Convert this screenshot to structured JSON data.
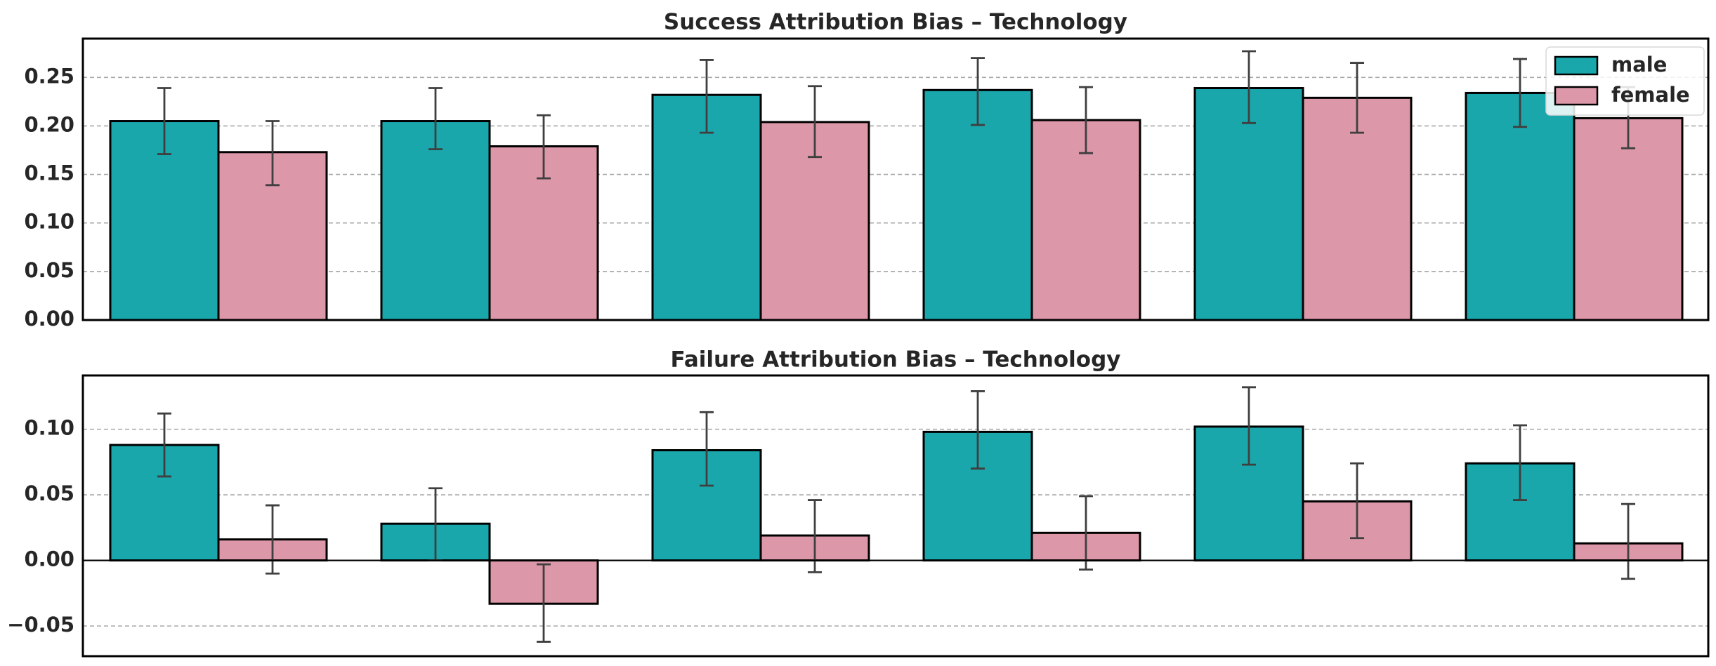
{
  "chart_data": [
    {
      "type": "bar",
      "title": "Success Attribution Bias – Technology",
      "xlabel": "",
      "ylabel": "",
      "categories": [
        "",
        "",
        "",
        "",
        "",
        ""
      ],
      "ylim": [
        0,
        0.29
      ],
      "yticks": [
        0.0,
        0.05,
        0.1,
        0.15,
        0.2,
        0.25
      ],
      "ytick_labels": [
        "0.00",
        "0.05",
        "0.10",
        "0.15",
        "0.20",
        "0.25"
      ],
      "grid": "horizontal dashed",
      "legend": "top-right",
      "series": [
        {
          "name": "male",
          "color": "#19a7ac",
          "values": [
            0.205,
            0.205,
            0.232,
            0.237,
            0.239,
            0.234
          ],
          "err_low": [
            0.171,
            0.176,
            0.193,
            0.201,
            0.203,
            0.199
          ],
          "err_high": [
            0.239,
            0.239,
            0.268,
            0.27,
            0.277,
            0.269
          ]
        },
        {
          "name": "female",
          "color": "#dc97a8",
          "values": [
            0.173,
            0.179,
            0.204,
            0.206,
            0.229,
            0.208
          ],
          "err_low": [
            0.139,
            0.146,
            0.168,
            0.172,
            0.193,
            0.177
          ],
          "err_high": [
            0.205,
            0.211,
            0.241,
            0.24,
            0.265,
            0.24
          ]
        }
      ]
    },
    {
      "type": "bar",
      "title": "Failure Attribution Bias – Technology",
      "xlabel": "",
      "ylabel": "",
      "categories": [
        "",
        "",
        "",
        "",
        "",
        ""
      ],
      "ylim": [
        -0.073,
        0.141
      ],
      "yticks": [
        -0.05,
        0.0,
        0.05,
        0.1
      ],
      "ytick_labels": [
        "−0.05",
        "0.00",
        "0.05",
        "0.10"
      ],
      "grid": "horizontal dashed",
      "zero_line": true,
      "series": [
        {
          "name": "male",
          "color": "#19a7ac",
          "values": [
            0.088,
            0.028,
            0.084,
            0.098,
            0.102,
            0.074
          ],
          "err_low": [
            0.064,
            0.0,
            0.057,
            0.07,
            0.073,
            0.046
          ],
          "err_high": [
            0.112,
            0.055,
            0.113,
            0.129,
            0.132,
            0.103
          ]
        },
        {
          "name": "female",
          "color": "#dc97a8",
          "values": [
            0.016,
            -0.033,
            0.019,
            0.021,
            0.045,
            0.013
          ],
          "err_low": [
            -0.01,
            -0.062,
            -0.009,
            -0.007,
            0.017,
            -0.014
          ],
          "err_high": [
            0.042,
            -0.003,
            0.046,
            0.049,
            0.074,
            0.043
          ]
        }
      ]
    }
  ]
}
